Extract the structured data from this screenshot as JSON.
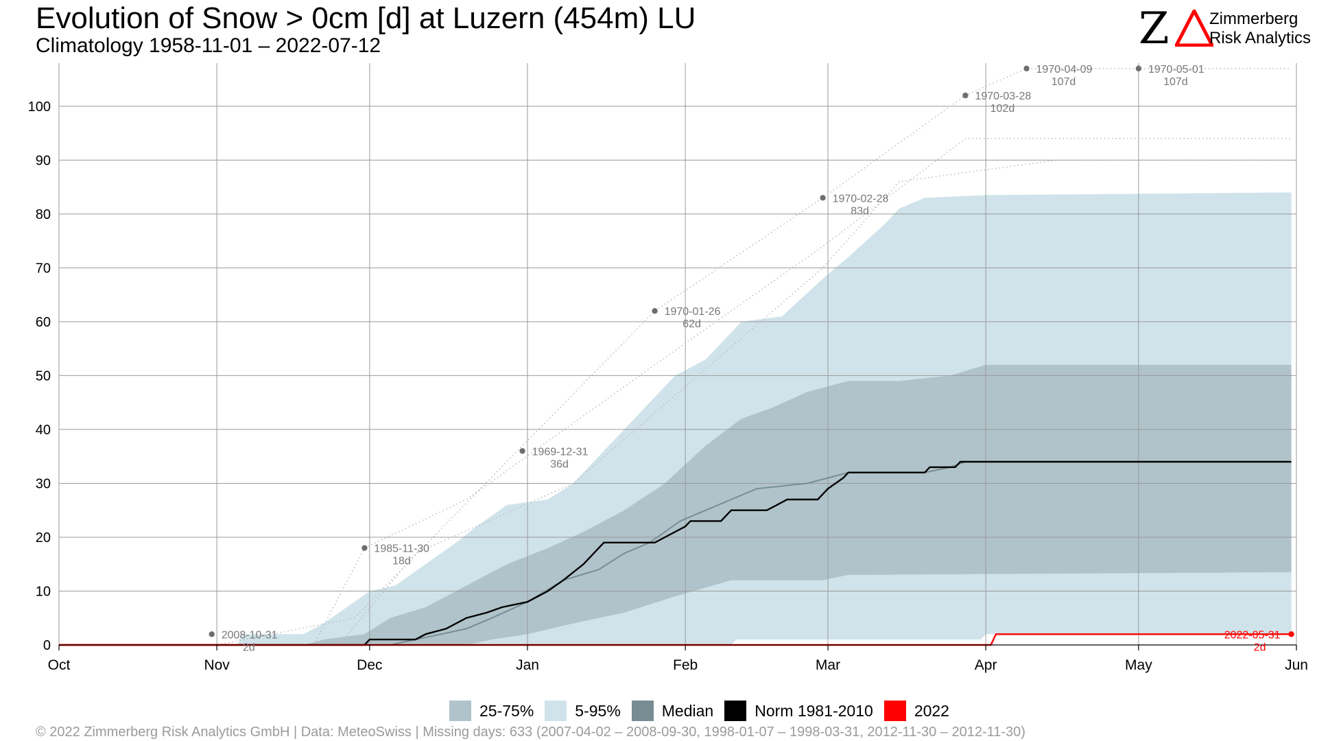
{
  "header": {
    "title": "Evolution of Snow > 0cm [d] at Luzern (454m) LU",
    "subtitle": "Climatology 1958-11-01 – 2022-07-12"
  },
  "logo": {
    "mark": "Z",
    "line1": "Zimmerberg",
    "line2": "Risk Analytics",
    "delta_color": "#ff0000"
  },
  "legend": {
    "items": [
      {
        "label": "25-75%",
        "color": "#b0c3ca"
      },
      {
        "label": "5-95%",
        "color": "#d0e3ea"
      },
      {
        "label": "Median",
        "color": "#788c93"
      },
      {
        "label": "Norm 1981-2010",
        "color": "#000000"
      },
      {
        "label": "2022",
        "color": "#ff0000"
      }
    ]
  },
  "caption": "©  2022 Zimmerberg Risk Analytics GmbH | Data: MeteoSwiss | Missing days: 633 (2007-04-02 – 2008-09-30, 1998-01-07 – 1998-03-31, 2012-11-30 – 2012-11-30)",
  "chart_data": {
    "type": "area",
    "xaxis_kind": "date",
    "x_range": [
      "2021-10-01",
      "2022-06-01"
    ],
    "ylim": [
      0,
      108
    ],
    "yticks": [
      0,
      10,
      20,
      30,
      40,
      50,
      60,
      70,
      80,
      90,
      100
    ],
    "x_tick_labels": [
      {
        "label": "Oct",
        "date": "2021-10-01"
      },
      {
        "label": "Nov",
        "date": "2021-11-01"
      },
      {
        "label": "Dec",
        "date": "2021-12-01"
      },
      {
        "label": "Jan",
        "date": "2022-01-01"
      },
      {
        "label": "Feb",
        "date": "2022-02-01"
      },
      {
        "label": "Mar",
        "date": "2022-03-01"
      },
      {
        "label": "Apr",
        "date": "2022-04-01"
      },
      {
        "label": "May",
        "date": "2022-05-01"
      },
      {
        "label": "Jun",
        "date": "2022-06-01"
      }
    ],
    "grid": true,
    "band_5_95": {
      "upper": [
        [
          "2021-10-01",
          0
        ],
        [
          "2021-11-05",
          0
        ],
        [
          "2021-11-06",
          2
        ],
        [
          "2021-11-18",
          2
        ],
        [
          "2021-11-22",
          4
        ],
        [
          "2021-11-28",
          8
        ],
        [
          "2021-12-01",
          10
        ],
        [
          "2021-12-06",
          11
        ],
        [
          "2021-12-12",
          15
        ],
        [
          "2021-12-18",
          19
        ],
        [
          "2021-12-22",
          22
        ],
        [
          "2021-12-28",
          26
        ],
        [
          "2022-01-05",
          27
        ],
        [
          "2022-01-10",
          30
        ],
        [
          "2022-01-20",
          40
        ],
        [
          "2022-01-30",
          50
        ],
        [
          "2022-02-05",
          53
        ],
        [
          "2022-02-10",
          58
        ],
        [
          "2022-02-12",
          60
        ],
        [
          "2022-02-20",
          61
        ],
        [
          "2022-02-28",
          68
        ],
        [
          "2022-03-05",
          72
        ],
        [
          "2022-03-12",
          78
        ],
        [
          "2022-03-15",
          81
        ],
        [
          "2022-03-20",
          83
        ],
        [
          "2022-04-01",
          83.5
        ],
        [
          "2022-05-31",
          84
        ]
      ],
      "lower": [
        [
          "2021-10-01",
          0
        ],
        [
          "2022-02-10",
          0
        ],
        [
          "2022-02-11",
          1
        ],
        [
          "2022-03-31",
          1
        ],
        [
          "2022-04-01",
          2
        ],
        [
          "2022-05-31",
          2
        ]
      ]
    },
    "band_25_75": {
      "upper": [
        [
          "2021-10-01",
          0
        ],
        [
          "2021-11-18",
          0
        ],
        [
          "2021-11-22",
          1
        ],
        [
          "2021-11-30",
          2
        ],
        [
          "2021-12-05",
          5
        ],
        [
          "2021-12-12",
          7
        ],
        [
          "2021-12-20",
          11
        ],
        [
          "2021-12-28",
          15
        ],
        [
          "2022-01-05",
          18
        ],
        [
          "2022-01-12",
          21
        ],
        [
          "2022-01-20",
          25
        ],
        [
          "2022-01-28",
          30
        ],
        [
          "2022-02-05",
          37
        ],
        [
          "2022-02-12",
          42
        ],
        [
          "2022-02-18",
          44
        ],
        [
          "2022-02-25",
          47
        ],
        [
          "2022-03-05",
          49
        ],
        [
          "2022-03-15",
          49
        ],
        [
          "2022-03-25",
          50
        ],
        [
          "2022-04-01",
          52
        ],
        [
          "2022-05-31",
          52
        ]
      ],
      "lower": [
        [
          "2021-10-01",
          0
        ],
        [
          "2021-12-20",
          0
        ],
        [
          "2021-12-25",
          1
        ],
        [
          "2022-01-01",
          2
        ],
        [
          "2022-01-10",
          4
        ],
        [
          "2022-01-20",
          6
        ],
        [
          "2022-01-30",
          9
        ],
        [
          "2022-02-10",
          12
        ],
        [
          "2022-02-28",
          12
        ],
        [
          "2022-03-05",
          13
        ],
        [
          "2022-05-31",
          13.5
        ]
      ]
    },
    "series": [
      {
        "name": "Median",
        "color": "#788c93",
        "points": [
          [
            "2021-10-01",
            0
          ],
          [
            "2021-12-05",
            0
          ],
          [
            "2021-12-10",
            1
          ],
          [
            "2021-12-15",
            2
          ],
          [
            "2021-12-20",
            3
          ],
          [
            "2021-12-25",
            5
          ],
          [
            "2022-01-01",
            8
          ],
          [
            "2022-01-08",
            12
          ],
          [
            "2022-01-15",
            14
          ],
          [
            "2022-01-20",
            17
          ],
          [
            "2022-01-25",
            19
          ],
          [
            "2022-01-31",
            23
          ],
          [
            "2022-02-05",
            25
          ],
          [
            "2022-02-10",
            27
          ],
          [
            "2022-02-15",
            29
          ],
          [
            "2022-02-25",
            30
          ],
          [
            "2022-03-01",
            31
          ],
          [
            "2022-03-05",
            32
          ],
          [
            "2022-03-20",
            32
          ],
          [
            "2022-03-25",
            33
          ],
          [
            "2022-03-28",
            34
          ],
          [
            "2022-05-31",
            34
          ]
        ]
      },
      {
        "name": "Norm 1981-2010",
        "color": "#000000",
        "points": [
          [
            "2021-10-01",
            0
          ],
          [
            "2021-11-30",
            0
          ],
          [
            "2021-12-01",
            1
          ],
          [
            "2021-12-10",
            1
          ],
          [
            "2021-12-12",
            2
          ],
          [
            "2021-12-16",
            3
          ],
          [
            "2021-12-20",
            5
          ],
          [
            "2021-12-24",
            6
          ],
          [
            "2021-12-27",
            7
          ],
          [
            "2022-01-01",
            8
          ],
          [
            "2022-01-05",
            10
          ],
          [
            "2022-01-08",
            12
          ],
          [
            "2022-01-12",
            15
          ],
          [
            "2022-01-15",
            18
          ],
          [
            "2022-01-16",
            19
          ],
          [
            "2022-01-26",
            19
          ],
          [
            "2022-01-28",
            20
          ],
          [
            "2022-02-01",
            22
          ],
          [
            "2022-02-02",
            23
          ],
          [
            "2022-02-08",
            23
          ],
          [
            "2022-02-10",
            25
          ],
          [
            "2022-02-17",
            25
          ],
          [
            "2022-02-19",
            26
          ],
          [
            "2022-02-21",
            27
          ],
          [
            "2022-02-27",
            27
          ],
          [
            "2022-03-01",
            29
          ],
          [
            "2022-03-04",
            31
          ],
          [
            "2022-03-05",
            32
          ],
          [
            "2022-03-20",
            32
          ],
          [
            "2022-03-21",
            33
          ],
          [
            "2022-03-26",
            33
          ],
          [
            "2022-03-27",
            34
          ],
          [
            "2022-05-31",
            34
          ]
        ]
      },
      {
        "name": "2022",
        "color": "#ff0000",
        "points": [
          [
            "2021-10-01",
            0
          ],
          [
            "2022-04-02",
            0
          ],
          [
            "2022-04-03",
            2
          ],
          [
            "2022-05-31",
            2
          ]
        ]
      }
    ],
    "record_traces": [
      [
        [
          "2021-10-01",
          0
        ],
        [
          "2021-11-01",
          0
        ],
        [
          "2021-11-28",
          5
        ],
        [
          "2021-12-30",
          36
        ],
        [
          "2022-01-26",
          62
        ],
        [
          "2022-02-28",
          83
        ],
        [
          "2022-03-28",
          102
        ],
        [
          "2022-04-09",
          107
        ],
        [
          "2022-05-31",
          107
        ]
      ],
      [
        [
          "2021-11-20",
          0
        ],
        [
          "2021-11-30",
          18
        ],
        [
          "2021-12-20",
          27
        ],
        [
          "2022-01-26",
          52
        ],
        [
          "2022-02-28",
          74
        ],
        [
          "2022-03-28",
          94
        ],
        [
          "2022-05-31",
          94
        ]
      ],
      [
        [
          "2021-11-25",
          0
        ],
        [
          "2021-12-10",
          17
        ],
        [
          "2022-01-10",
          30
        ],
        [
          "2022-02-28",
          70
        ],
        [
          "2022-03-15",
          86
        ],
        [
          "2022-04-15",
          90
        ],
        [
          "2022-05-31",
          90
        ]
      ]
    ],
    "annotations": [
      {
        "date": "2021-10-31",
        "value": 2,
        "label": "2008-10-31",
        "days": "2d"
      },
      {
        "date": "2021-11-30",
        "value": 18,
        "label": "1985-11-30",
        "days": "18d"
      },
      {
        "date": "2021-12-31",
        "value": 36,
        "label": "1969-12-31",
        "days": "36d"
      },
      {
        "date": "2022-01-26",
        "value": 62,
        "label": "1970-01-26",
        "days": "62d"
      },
      {
        "date": "2022-02-28",
        "value": 83,
        "label": "1970-02-28",
        "days": "83d"
      },
      {
        "date": "2022-03-28",
        "value": 102,
        "label": "1970-03-28",
        "days": "102d"
      },
      {
        "date": "2022-04-09",
        "value": 107,
        "label": "1970-04-09",
        "days": "107d"
      },
      {
        "date": "2022-05-01",
        "value": 107,
        "label": "1970-05-01",
        "days": "107d"
      },
      {
        "date": "2022-05-31",
        "value": 2,
        "label": "2022-05-31",
        "days": "2d",
        "color": "#ff0000"
      }
    ]
  }
}
